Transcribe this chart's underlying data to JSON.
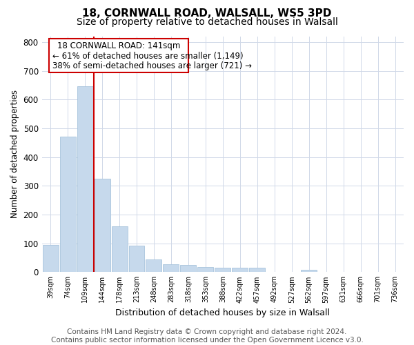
{
  "title": "18, CORNWALL ROAD, WALSALL, WS5 3PD",
  "subtitle": "Size of property relative to detached houses in Walsall",
  "xlabel": "Distribution of detached houses by size in Walsall",
  "ylabel": "Number of detached properties",
  "bin_labels": [
    "39sqm",
    "74sqm",
    "109sqm",
    "144sqm",
    "178sqm",
    "213sqm",
    "248sqm",
    "283sqm",
    "318sqm",
    "353sqm",
    "388sqm",
    "422sqm",
    "457sqm",
    "492sqm",
    "527sqm",
    "562sqm",
    "597sqm",
    "631sqm",
    "666sqm",
    "701sqm",
    "736sqm"
  ],
  "bar_values": [
    95,
    470,
    645,
    325,
    160,
    93,
    44,
    28,
    25,
    17,
    15,
    15,
    15,
    0,
    0,
    8,
    0,
    0,
    0,
    0,
    0
  ],
  "bar_color": "#c6d9ec",
  "bar_edge_color": "#a8c4dc",
  "ylim": [
    0,
    820
  ],
  "yticks": [
    0,
    100,
    200,
    300,
    400,
    500,
    600,
    700,
    800
  ],
  "vline_x": 3.0,
  "vline_color": "#cc0000",
  "annotation_line1": "18 CORNWALL ROAD: 141sqm",
  "annotation_line2": "← 61% of detached houses are smaller (1,149)",
  "annotation_line3": "38% of semi-detached houses are larger (721) →",
  "annotation_box_color": "#cc0000",
  "bg_color": "#ffffff",
  "grid_color": "#d0d8e8",
  "footer_text": "Contains HM Land Registry data © Crown copyright and database right 2024.\nContains public sector information licensed under the Open Government Licence v3.0.",
  "title_fontsize": 11,
  "subtitle_fontsize": 10,
  "annot_fontsize": 8.5,
  "footer_fontsize": 7.5,
  "xlabel_fontsize": 9,
  "ylabel_fontsize": 8.5
}
